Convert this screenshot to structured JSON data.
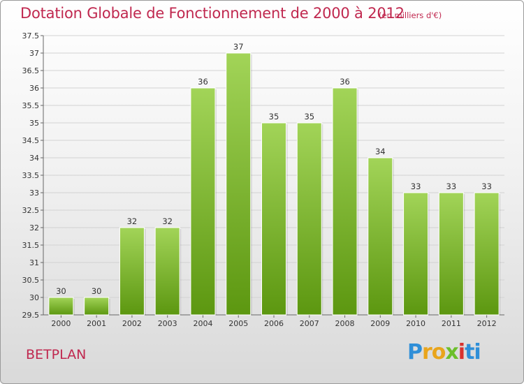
{
  "header": {
    "title": "Dotation Globale de Fonctionnement de 2000 à 2012",
    "subtitle": "(en milliers d'€)"
  },
  "footer": {
    "commune": "BETPLAN",
    "logo": [
      "P",
      "r",
      "o",
      "x",
      "i",
      "ti"
    ]
  },
  "colors": {
    "title": "#c0284f",
    "bar_light": "#9fd154",
    "bar_dark": "#5f9a12"
  },
  "chart_data": {
    "type": "bar",
    "title": "Dotation Globale de Fonctionnement de 2000 à 2012",
    "subtitle": "(en milliers d'€)",
    "categories": [
      "2000",
      "2001",
      "2002",
      "2003",
      "2004",
      "2005",
      "2006",
      "2007",
      "2008",
      "2009",
      "2010",
      "2011",
      "2012"
    ],
    "values": [
      30,
      30,
      32,
      32,
      36,
      37,
      35,
      35,
      36,
      34,
      33,
      33,
      33
    ],
    "data_labels": [
      "30",
      "30",
      "32",
      "32",
      "36",
      "37",
      "35",
      "35",
      "36",
      "34",
      "33",
      "33",
      "33"
    ],
    "ylim": [
      29.5,
      37.5
    ],
    "yticks": [
      29.5,
      30,
      30.5,
      31,
      31.5,
      32,
      32.5,
      33,
      33.5,
      34,
      34.5,
      35,
      35.5,
      36,
      36.5,
      37,
      37.5
    ],
    "ytick_labels": [
      "29.5",
      "30",
      "30.5",
      "31",
      "31.5",
      "32",
      "32.5",
      "33",
      "33.5",
      "34",
      "34.5",
      "35",
      "35.5",
      "36",
      "36.5",
      "37",
      "37.5"
    ],
    "grid": true,
    "legend": "none"
  }
}
